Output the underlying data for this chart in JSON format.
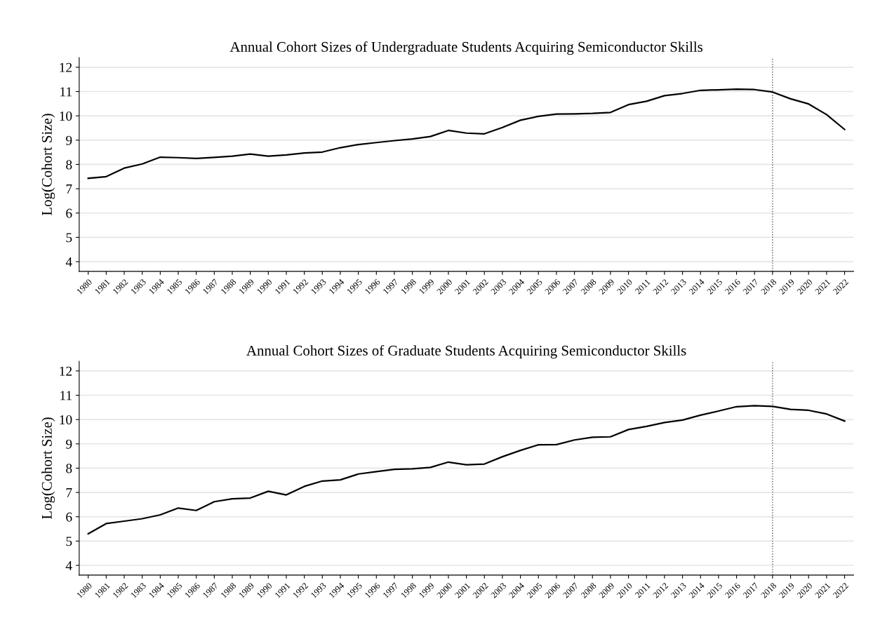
{
  "chart_data": [
    {
      "type": "line",
      "title": "Annual Cohort Sizes of Undergraduate Students Acquiring Semiconductor Skills",
      "ylabel": "Log(Cohort Size)",
      "x": [
        1980,
        1981,
        1982,
        1983,
        1984,
        1985,
        1986,
        1987,
        1988,
        1989,
        1990,
        1991,
        1992,
        1993,
        1994,
        1995,
        1996,
        1997,
        1998,
        1999,
        2000,
        2001,
        2002,
        2003,
        2004,
        2005,
        2006,
        2007,
        2008,
        2009,
        2010,
        2011,
        2012,
        2013,
        2014,
        2015,
        2016,
        2017,
        2018,
        2019,
        2020,
        2021,
        2022
      ],
      "series": [
        {
          "color": "#000000",
          "values": [
            7.43,
            7.5,
            7.85,
            8.02,
            8.3,
            8.28,
            8.25,
            8.29,
            8.34,
            8.43,
            8.34,
            8.39,
            8.47,
            8.51,
            8.69,
            8.82,
            8.9,
            8.98,
            9.05,
            9.15,
            9.4,
            9.29,
            9.26,
            9.52,
            9.82,
            9.98,
            10.07,
            10.08,
            10.1,
            10.14,
            10.46,
            10.6,
            10.83,
            10.92,
            11.05,
            11.07,
            11.1,
            11.08,
            10.98,
            10.7,
            10.49,
            10.05,
            9.44
          ]
        }
      ],
      "xlim": [
        1979.5,
        2022.5
      ],
      "xticks": [
        1980,
        1981,
        1982,
        1983,
        1984,
        1985,
        1986,
        1987,
        1988,
        1989,
        1990,
        1991,
        1992,
        1993,
        1994,
        1995,
        1996,
        1997,
        1998,
        1999,
        2000,
        2001,
        2002,
        2003,
        2004,
        2005,
        2006,
        2007,
        2008,
        2009,
        2010,
        2011,
        2012,
        2013,
        2014,
        2015,
        2016,
        2017,
        2018,
        2019,
        2020,
        2021,
        2022
      ],
      "ylim": [
        3.6,
        12.4
      ],
      "yticks": [
        4,
        5,
        6,
        7,
        8,
        9,
        10,
        11,
        12
      ],
      "grid": "y",
      "line_style": "solid",
      "ref_lines": [
        {
          "axis": "x",
          "value": 2018,
          "color": "#555555",
          "line_style": "dotted"
        }
      ]
    },
    {
      "type": "line",
      "title": "Annual Cohort Sizes of Graduate Students Acquiring Semiconductor Skills",
      "ylabel": "Log(Cohort Size)",
      "x": [
        1980,
        1981,
        1982,
        1983,
        1984,
        1985,
        1986,
        1987,
        1988,
        1989,
        1990,
        1991,
        1992,
        1993,
        1994,
        1995,
        1996,
        1997,
        1998,
        1999,
        2000,
        2001,
        2002,
        2003,
        2004,
        2005,
        2006,
        2007,
        2008,
        2009,
        2010,
        2011,
        2012,
        2013,
        2014,
        2015,
        2016,
        2017,
        2018,
        2019,
        2020,
        2021,
        2022
      ],
      "series": [
        {
          "color": "#000000",
          "values": [
            5.3,
            5.72,
            5.82,
            5.92,
            6.08,
            6.36,
            6.26,
            6.62,
            6.74,
            6.77,
            7.05,
            6.9,
            7.25,
            7.47,
            7.52,
            7.76,
            7.86,
            7.95,
            7.97,
            8.03,
            8.25,
            8.14,
            8.17,
            8.47,
            8.73,
            8.96,
            8.97,
            9.16,
            9.27,
            9.29,
            9.59,
            9.72,
            9.88,
            9.98,
            10.18,
            10.35,
            10.53,
            10.57,
            10.54,
            10.42,
            10.38,
            10.23,
            9.94
          ]
        }
      ],
      "xlim": [
        1979.5,
        2022.5
      ],
      "xticks": [
        1980,
        1981,
        1982,
        1983,
        1984,
        1985,
        1986,
        1987,
        1988,
        1989,
        1990,
        1991,
        1992,
        1993,
        1994,
        1995,
        1996,
        1997,
        1998,
        1999,
        2000,
        2001,
        2002,
        2003,
        2004,
        2005,
        2006,
        2007,
        2008,
        2009,
        2010,
        2011,
        2012,
        2013,
        2014,
        2015,
        2016,
        2017,
        2018,
        2019,
        2020,
        2021,
        2022
      ],
      "ylim": [
        3.6,
        12.4
      ],
      "yticks": [
        4,
        5,
        6,
        7,
        8,
        9,
        10,
        11,
        12
      ],
      "grid": "y",
      "line_style": "solid",
      "ref_lines": [
        {
          "axis": "x",
          "value": 2018,
          "color": "#555555",
          "line_style": "dotted"
        }
      ]
    }
  ]
}
